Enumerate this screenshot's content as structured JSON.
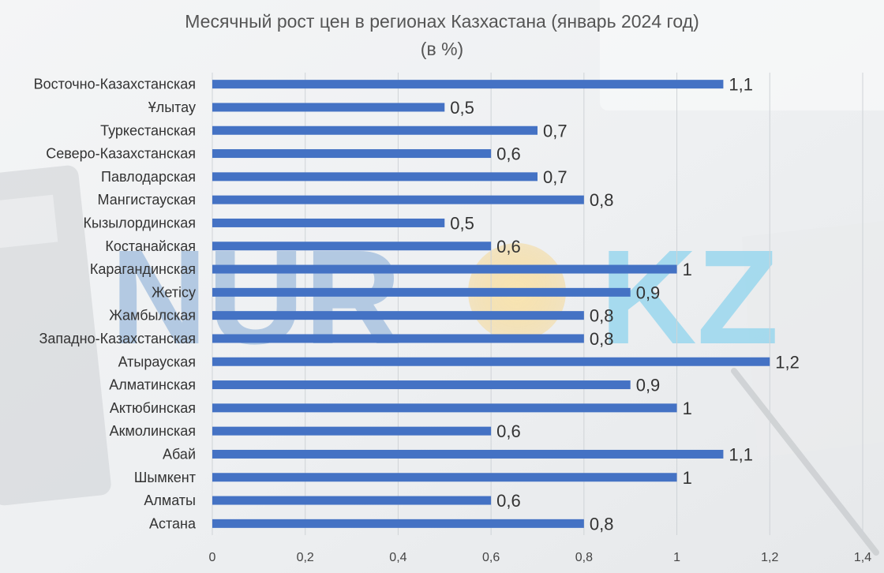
{
  "chart_data": {
    "type": "bar",
    "orientation": "horizontal",
    "title": "Месячный рост цен в регионах Казхастана (январь 2024 год)",
    "subtitle": "(в %)",
    "categories": [
      "Восточно-Казахстанская",
      "Ұлытау",
      "Туркестанская",
      "Северо-Казахстанская",
      "Павлодарская",
      "Мангистауская",
      "Кызылординская",
      "Костанайская",
      "Карагандинская",
      "Жетісу",
      "Жамбылская",
      "Западно-Казахстанская",
      "Атырауская",
      "Алматинская",
      "Актюбинская",
      "Акмолинская",
      "Абай",
      "Шымкент",
      "Алматы",
      "Астана"
    ],
    "values": [
      1.1,
      0.5,
      0.7,
      0.6,
      0.7,
      0.8,
      0.5,
      0.6,
      1,
      0.9,
      0.8,
      0.8,
      1.2,
      0.9,
      1,
      0.6,
      1.1,
      1,
      0.6,
      0.8
    ],
    "value_labels": [
      "1,1",
      "0,5",
      "0,7",
      "0,6",
      "0,7",
      "0,8",
      "0,5",
      "0,6",
      "1",
      "0,9",
      "0,8",
      "0,8",
      "1,2",
      "0,9",
      "1",
      "0,6",
      "1,1",
      "1",
      "0,6",
      "0,8"
    ],
    "x_ticks": [
      0,
      0.2,
      0.4,
      0.6,
      0.8,
      1,
      1.2,
      1.4
    ],
    "x_tick_labels": [
      "0",
      "0,2",
      "0,4",
      "0,6",
      "0,8",
      "1",
      "1,2",
      "1,4"
    ],
    "xlim": [
      0,
      1.4
    ],
    "xlabel": "",
    "ylabel": "",
    "grid": "vertical",
    "bar_color": "#4472C4",
    "legend": "none"
  },
  "watermark": {
    "text_left": "NUR",
    "text_right": "KZ",
    "color_left": "#a9c3e0",
    "color_right": "#9ad7ee"
  }
}
